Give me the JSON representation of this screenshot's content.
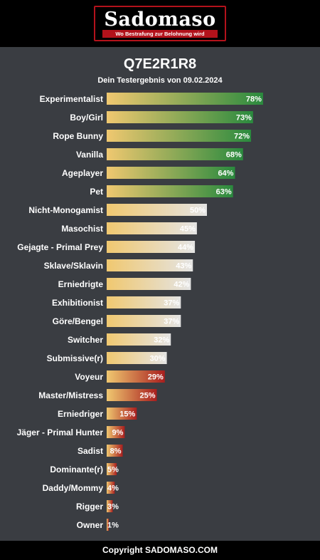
{
  "header": {
    "logo_title": "Sadomaso",
    "logo_tagline": "Wo Bestrafung zur Belohnung wird"
  },
  "result": {
    "title": "Q7E2R1R8",
    "subtitle": "Dein Testergebnis von 09.02.2024"
  },
  "footer": {
    "copyright": "Copyright SADOMASO.COM"
  },
  "colors": {
    "background": "#3a3d42",
    "bar_start": "#f0c870",
    "high_end": "#2a8a3e",
    "mid_end": "#e4e4e4",
    "low_end": "#a81e1e",
    "brand_red": "#b3121b"
  },
  "chart_data": {
    "type": "bar",
    "orientation": "horizontal",
    "xlim": [
      0,
      100
    ],
    "categories": [
      "Experimentalist",
      "Boy/Girl",
      "Rope Bunny",
      "Vanilla",
      "Ageplayer",
      "Pet",
      "Nicht-Monogamist",
      "Masochist",
      "Gejagte - Primal Prey",
      "Sklave/Sklavin",
      "Erniedrigte",
      "Exhibitionist",
      "Göre/Bengel",
      "Switcher",
      "Submissive(r)",
      "Voyeur",
      "Master/Mistress",
      "Erniedriger",
      "Jäger - Primal Hunter",
      "Sadist",
      "Dominante(r)",
      "Daddy/Mommy",
      "Rigger",
      "Owner"
    ],
    "values": [
      78,
      73,
      72,
      68,
      64,
      63,
      50,
      45,
      44,
      43,
      42,
      37,
      37,
      32,
      30,
      29,
      25,
      15,
      9,
      8,
      5,
      4,
      3,
      1
    ],
    "value_labels": [
      "78%",
      "73%",
      "72%",
      "68%",
      "64%",
      "63%",
      "50%",
      "45%",
      "44%",
      "43%",
      "42%",
      "37%",
      "37%",
      "32%",
      "30%",
      "29%",
      "25%",
      "15%",
      "9%",
      "8%",
      "5%",
      "4%",
      "3%",
      "1%"
    ],
    "color_group": [
      "high",
      "high",
      "high",
      "high",
      "high",
      "high",
      "mid",
      "mid",
      "mid",
      "mid",
      "mid",
      "mid",
      "mid",
      "mid",
      "mid",
      "low",
      "low",
      "low",
      "low",
      "low",
      "low",
      "low",
      "low",
      "low"
    ]
  }
}
